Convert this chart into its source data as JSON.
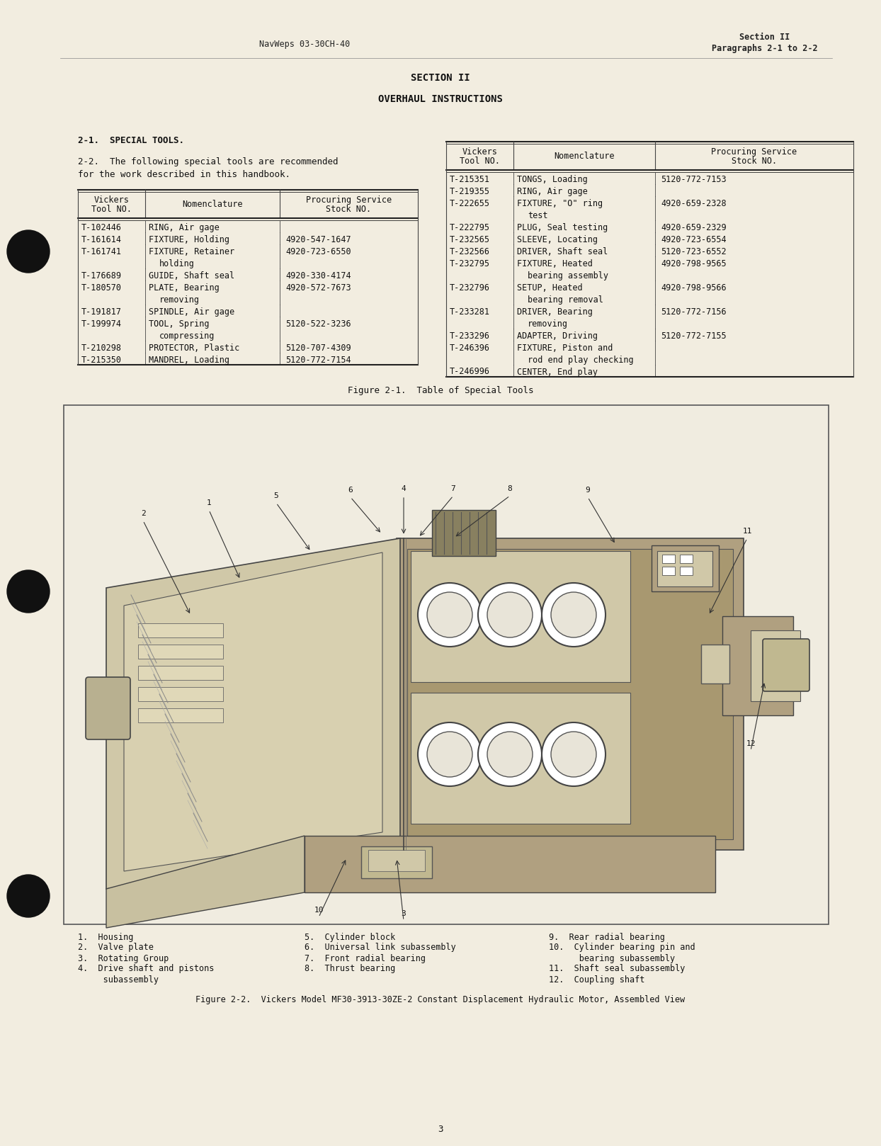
{
  "bg_color": "#f2ede0",
  "header_left": "NavWeps 03-30CH-40",
  "header_right_line1": "Section II",
  "header_right_line2": "Paragraphs 2-1 to 2-2",
  "section_title": "SECTION II",
  "section_subtitle": "OVERHAUL INSTRUCTIONS",
  "para_2_1_title": "2-1.  SPECIAL TOOLS.",
  "left_table_rows": [
    [
      "T-102446",
      "RING, Air gage",
      ""
    ],
    [
      "T-161614",
      "FIXTURE, Holding",
      "4920-547-1647"
    ],
    [
      "T-161741",
      "FIXTURE, Retainer",
      "4920-723-6550",
      "holding"
    ],
    [
      "T-176689",
      "GUIDE, Shaft seal",
      "4920-330-4174"
    ],
    [
      "T-180570",
      "PLATE, Bearing",
      "4920-572-7673",
      "removing"
    ],
    [
      "T-191817",
      "SPINDLE, Air gage",
      ""
    ],
    [
      "T-199974",
      "TOOL, Spring",
      "5120-522-3236",
      "compressing"
    ],
    [
      "T-210298",
      "PROTECTOR, Plastic",
      "5120-707-4309"
    ],
    [
      "T-215350",
      "MANDREL, Loading",
      "5120-772-7154"
    ]
  ],
  "right_table_rows": [
    [
      "T-215351",
      "TONGS, Loading",
      "5120-772-7153"
    ],
    [
      "T-219355",
      "RING, Air gage",
      ""
    ],
    [
      "T-222655",
      "FIXTURE, \"O\" ring",
      "4920-659-2328",
      "test"
    ],
    [
      "T-222795",
      "PLUG, Seal testing",
      "4920-659-2329"
    ],
    [
      "T-232565",
      "SLEEVE, Locating",
      "4920-723-6554"
    ],
    [
      "T-232566",
      "DRIVER, Shaft seal",
      "5120-723-6552"
    ],
    [
      "T-232795",
      "FIXTURE, Heated",
      "4920-798-9565",
      "bearing assembly"
    ],
    [
      "T-232796",
      "SETUP, Heated",
      "4920-798-9566",
      "bearing removal"
    ],
    [
      "T-233281",
      "DRIVER, Bearing",
      "5120-772-7156",
      "removing"
    ],
    [
      "T-233296",
      "ADAPTER, Driving",
      "5120-772-7155"
    ],
    [
      "T-246396",
      "FIXTURE, Piston and",
      "",
      "rod end play checking"
    ],
    [
      "T-246996",
      "CENTER, End play",
      ""
    ]
  ],
  "figure_2_1_caption": "Figure 2-1.  Table of Special Tools",
  "legend_col1": [
    "1.  Housing",
    "2.  Valve plate",
    "3.  Rotating Group",
    "4.  Drive shaft and pistons",
    "     subassembly"
  ],
  "legend_col2": [
    "5.  Cylinder block",
    "6.  Universal link subassembly",
    "7.  Front radial bearing",
    "8.  Thrust bearing",
    ""
  ],
  "legend_col3": [
    "9.  Rear radial bearing",
    "10.  Cylinder bearing pin and",
    "      bearing subassembly",
    "11.  Shaft seal subassembly",
    "12.  Coupling shaft"
  ],
  "figure_2_2_caption": "Figure 2-2.  Vickers Model MF30-3913-30ZE-2 Constant Displacement Hydraulic Motor, Assembled View",
  "page_number": "3"
}
